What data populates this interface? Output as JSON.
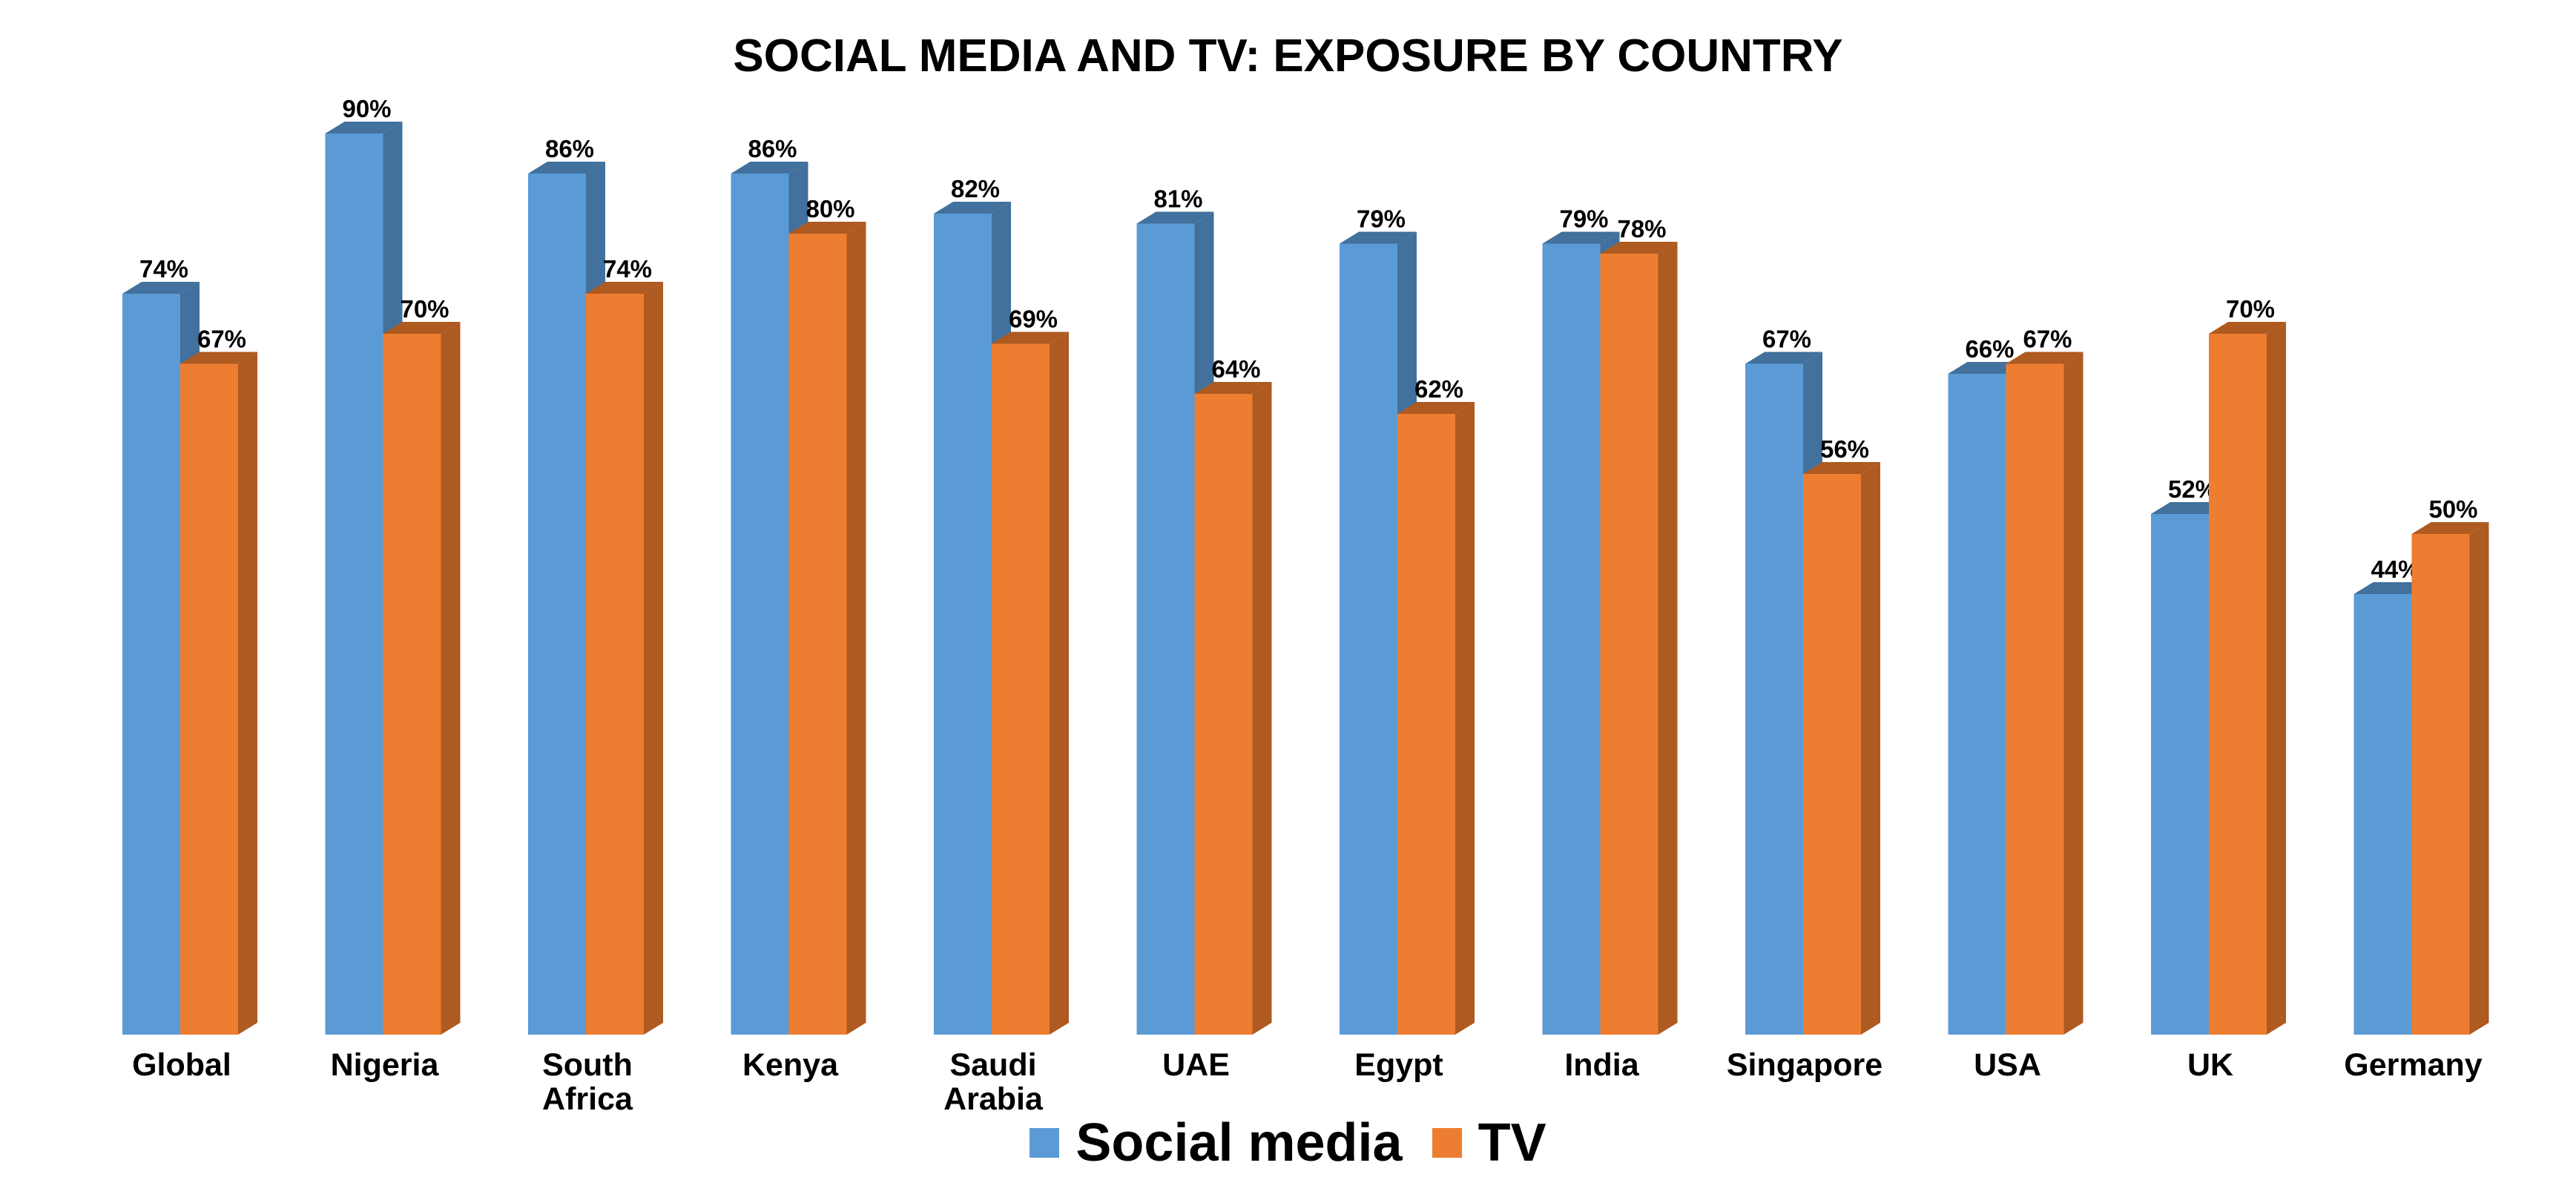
{
  "chart_data": {
    "type": "bar",
    "title": "SOCIAL MEDIA AND TV: EXPOSURE BY COUNTRY",
    "categories": [
      [
        "Global"
      ],
      [
        "Nigeria"
      ],
      [
        "South",
        "Africa"
      ],
      [
        "Kenya"
      ],
      [
        "Saudi",
        "Arabia"
      ],
      [
        "UAE"
      ],
      [
        "Egypt"
      ],
      [
        "India"
      ],
      [
        "Singapore"
      ],
      [
        "USA"
      ],
      [
        "UK"
      ],
      [
        "Germany"
      ]
    ],
    "series": [
      {
        "name": "Social media",
        "color": "#5B9BD5",
        "values": [
          74,
          90,
          86,
          86,
          82,
          81,
          79,
          79,
          67,
          66,
          52,
          44
        ]
      },
      {
        "name": "TV",
        "color": "#ED7D31",
        "values": [
          67,
          70,
          74,
          80,
          69,
          64,
          62,
          78,
          56,
          67,
          70,
          50
        ]
      }
    ],
    "value_suffix": "%",
    "ylim": [
      0,
      100
    ],
    "grid": false,
    "legend_position": "bottom",
    "data_labels": true
  }
}
